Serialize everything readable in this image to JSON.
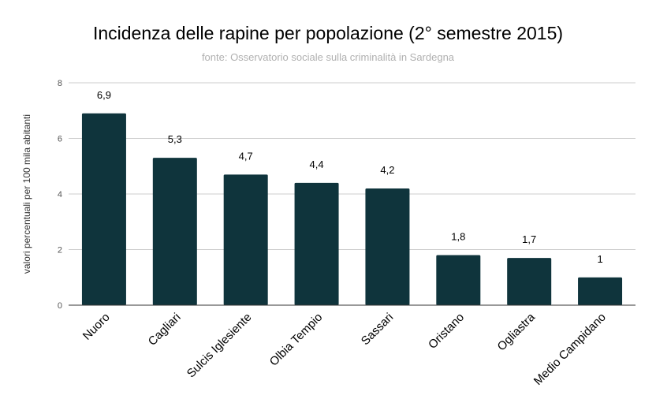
{
  "chart_data": {
    "type": "bar",
    "title": "Incidenza delle rapine per popolazione (2° semestre 2015)",
    "subtitle": "fonte: Osservatorio sociale sulla criminalità in Sardegna",
    "xlabel": "",
    "ylabel": "valori percentuali per 100 mila abitanti",
    "ylim": [
      0,
      8
    ],
    "yticks": [
      "0",
      "2",
      "4",
      "6",
      "8"
    ],
    "grid": true,
    "bar_color": "#0f343c",
    "categories": [
      "Nuoro",
      "Cagliari",
      "Sulcis Iglesiente",
      "Olbia Tempio",
      "Sassari",
      "Oristano",
      "Ogliastra",
      "Medio Campidano"
    ],
    "values": [
      6.9,
      5.3,
      4.7,
      4.4,
      4.2,
      1.8,
      1.7,
      1
    ],
    "data_labels": [
      "6,9",
      "5,3",
      "4,7",
      "4,4",
      "4,2",
      "1,8",
      "1,7",
      "1"
    ]
  }
}
